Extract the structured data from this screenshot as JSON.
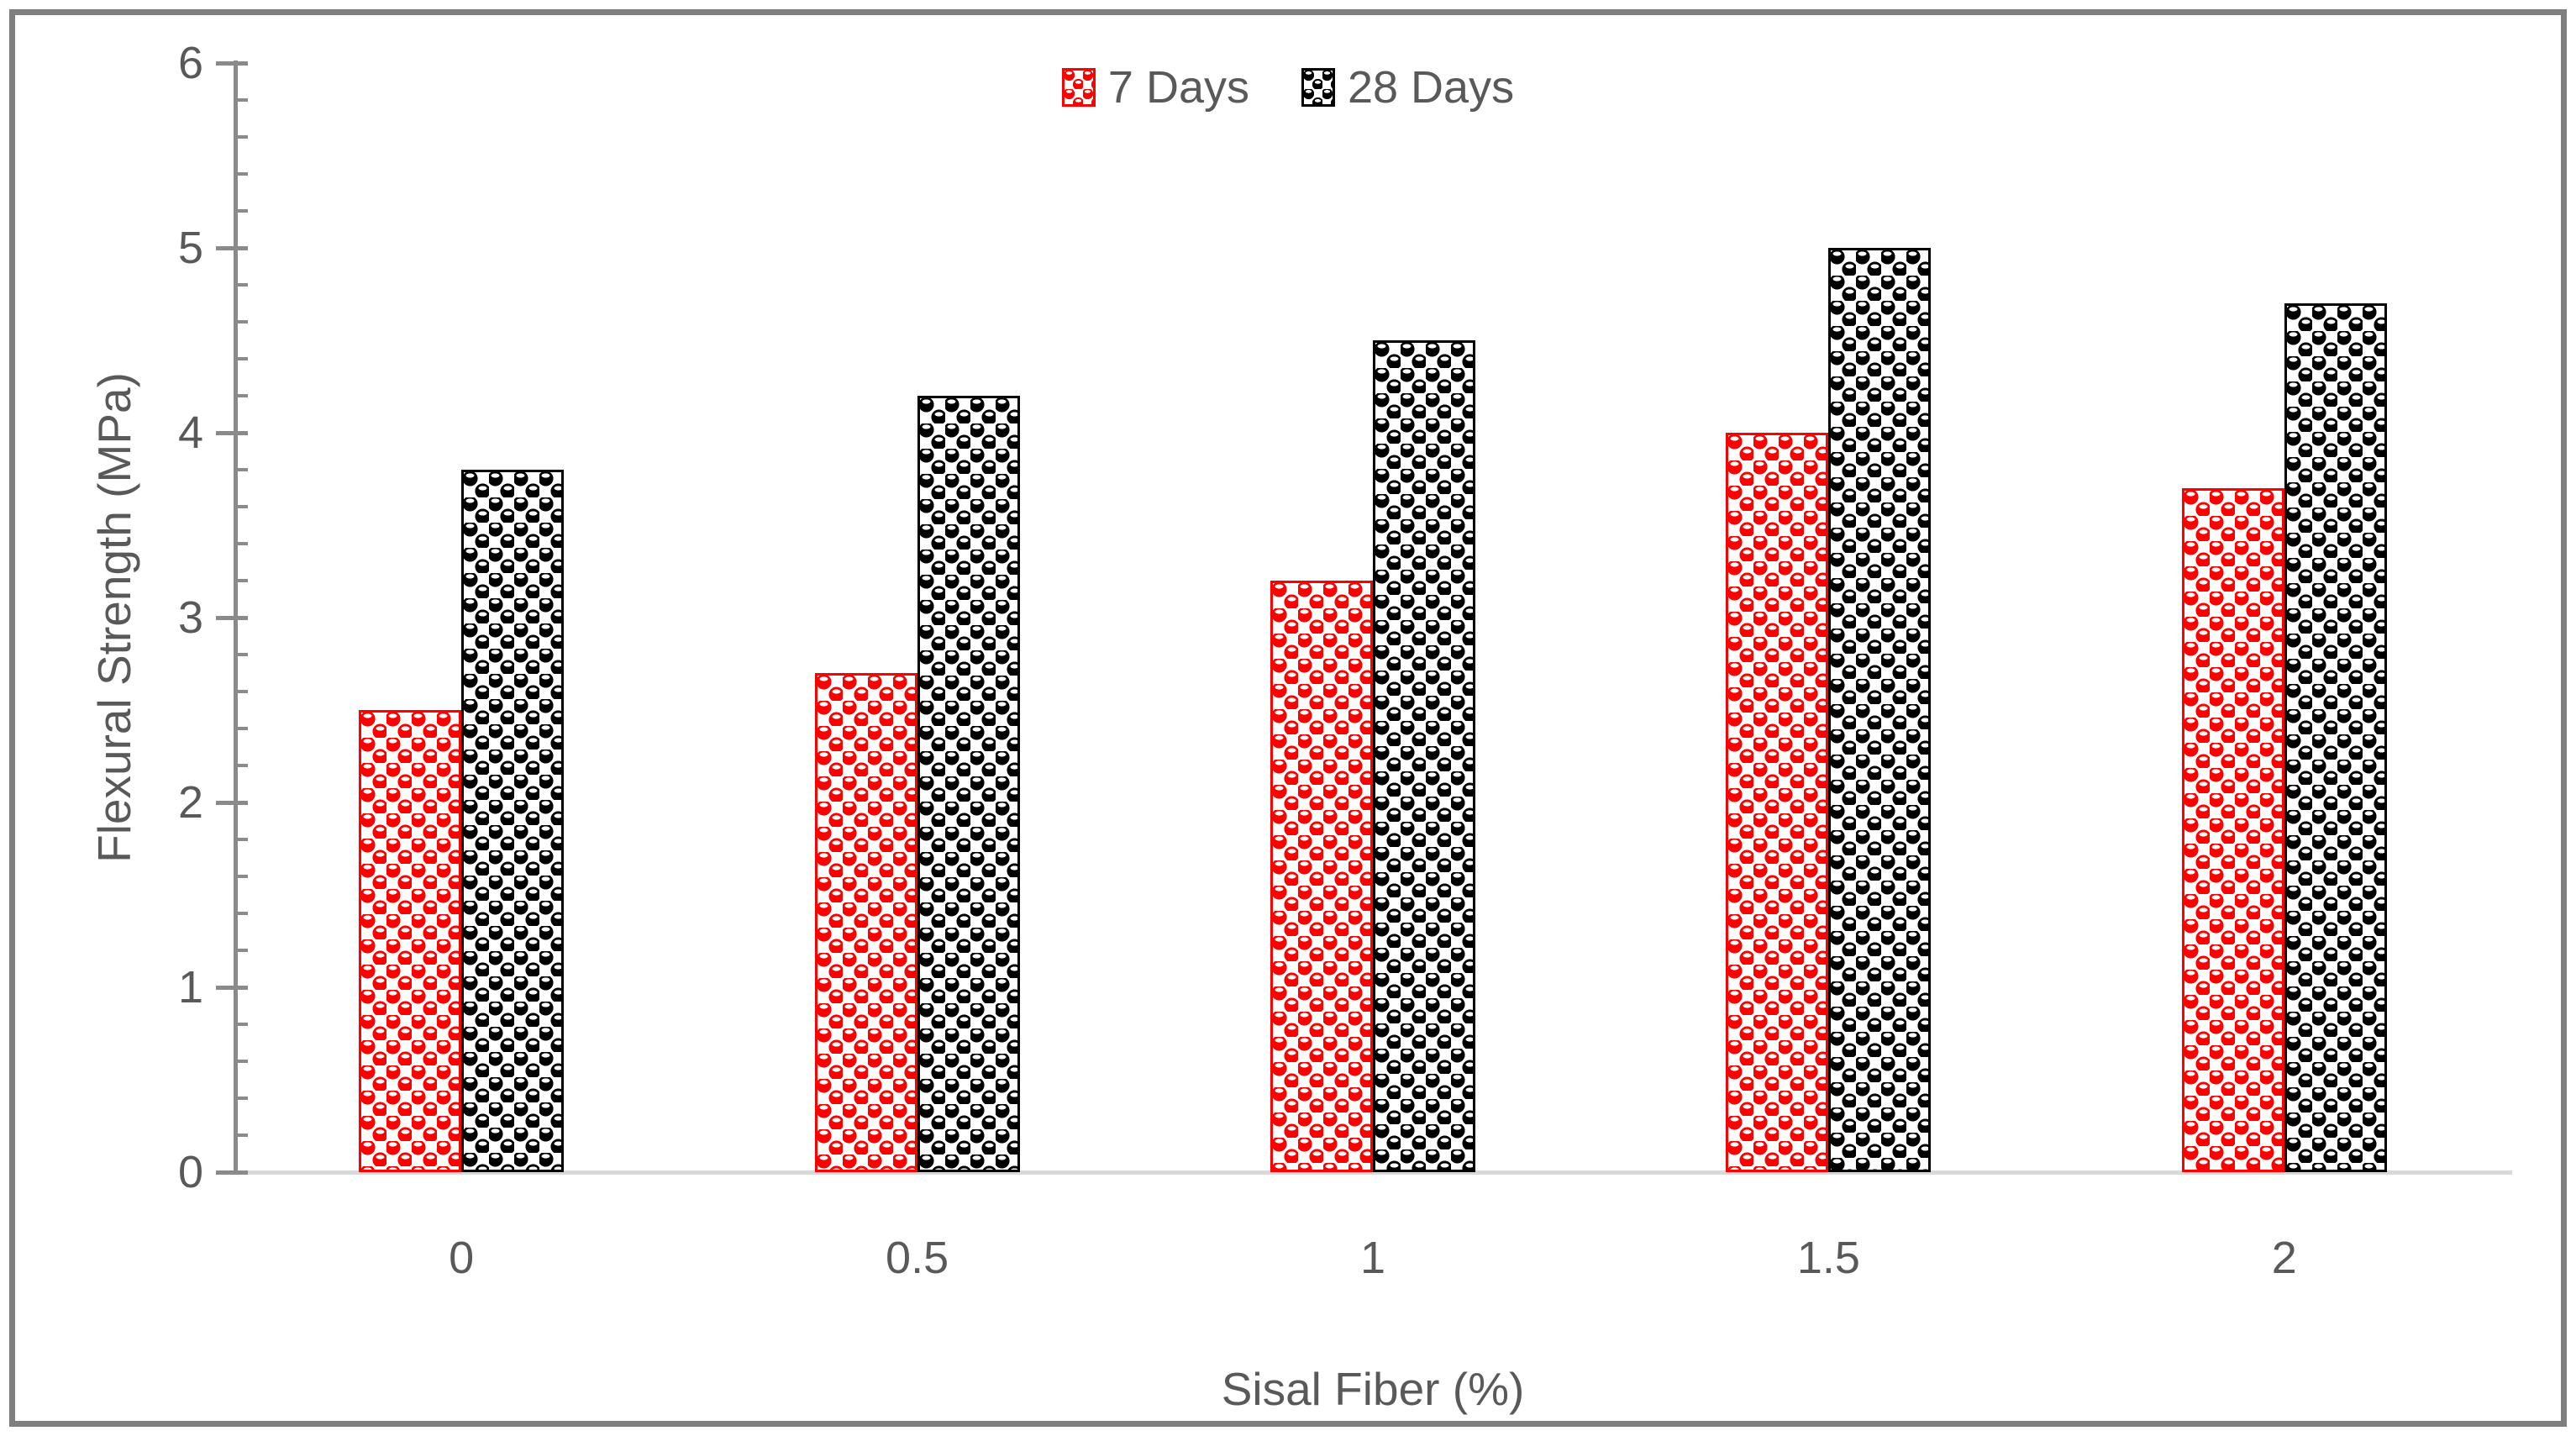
{
  "chart_data": {
    "type": "bar",
    "title": "",
    "categories": [
      "0",
      "0.5",
      "1",
      "1.5",
      "2"
    ],
    "series": [
      {
        "name": "7 Days",
        "color": "#FF0000",
        "values": [
          2.5,
          2.7,
          3.2,
          4.0,
          3.7
        ]
      },
      {
        "name": "28 Days",
        "color": "#000000",
        "values": [
          3.8,
          4.2,
          4.5,
          5.0,
          4.7
        ]
      }
    ],
    "xlabel": "Sisal Fiber (%)",
    "ylabel": "Flexural Strength (MPa)",
    "ylim": [
      0,
      6
    ],
    "y_major_step": 1,
    "y_minor_step": 0.2,
    "y_tick_labels": [
      "0",
      "1",
      "2",
      "3",
      "4",
      "5",
      "6"
    ],
    "grid": false,
    "legend_position": "top-center",
    "bar_fill_style": "checkered-sphere-pattern"
  },
  "colors": {
    "text": "#595959",
    "axis": "#8A8A8A",
    "baseline": "#D9D9D9",
    "frame": "#7F7F7F",
    "background": "#FFFFFF",
    "series_7_days": "#FF0000",
    "series_28_days": "#000000"
  }
}
